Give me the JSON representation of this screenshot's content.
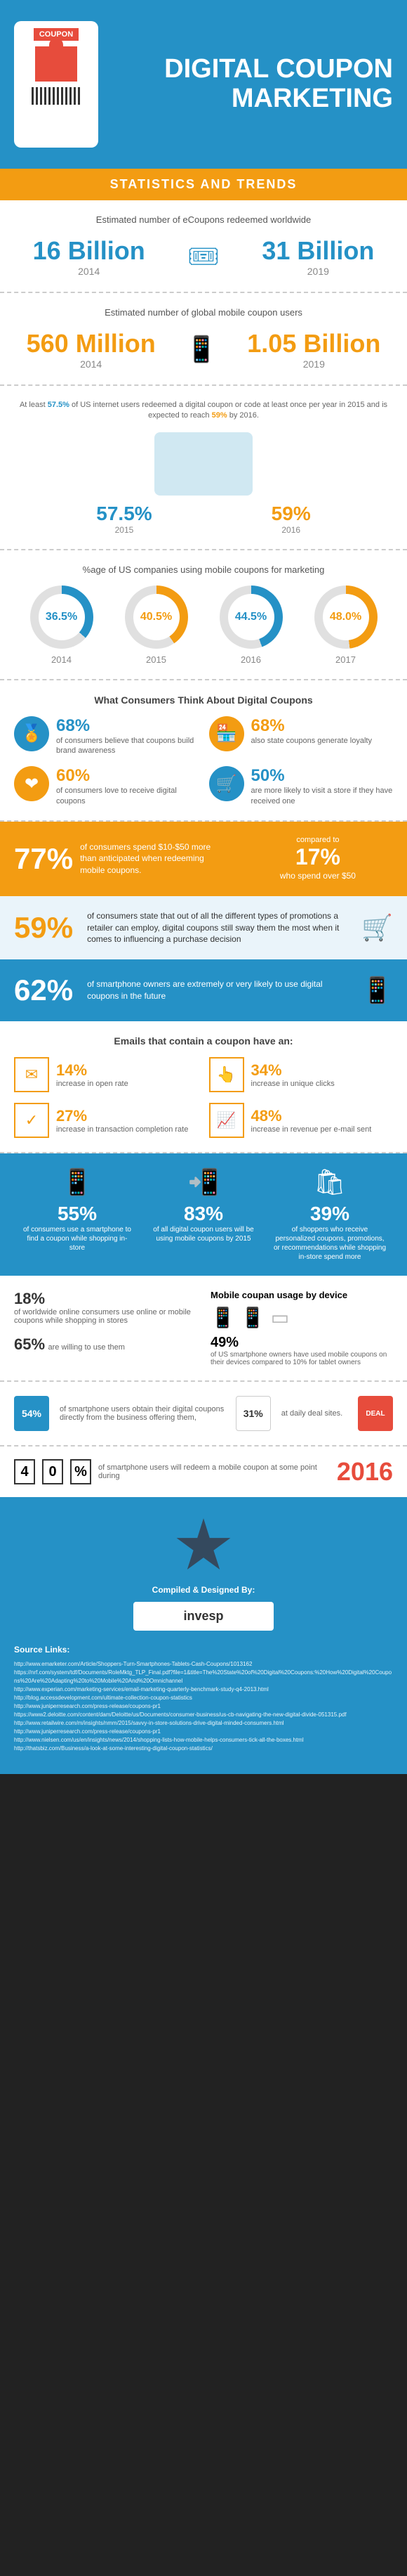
{
  "header": {
    "coupon_label": "COUPON",
    "title": "DIGITAL COUPON MARKETING"
  },
  "subtitle": "STATISTICS AND TRENDS",
  "ecoupons_redeemed": {
    "label": "Estimated number of eCoupons redeemed worldwide",
    "left": {
      "num": "16 Billion",
      "year": "2014"
    },
    "right": {
      "num": "31 Billion",
      "year": "2019"
    }
  },
  "mobile_users": {
    "label": "Estimated number of global mobile coupon users",
    "left": {
      "num": "560 Million",
      "year": "2014"
    },
    "right": {
      "num": "1.05 Billion",
      "year": "2019"
    }
  },
  "redemption": {
    "text_parts": {
      "p1": "At least ",
      "pct1": "57.5%",
      "p2": " of US internet users redeemed a digital coupon or code at least once per year in 2015 and is expected to reach ",
      "pct2": "59%",
      "p3": " by 2016."
    },
    "left": {
      "pct": "57.5%",
      "year": "2015",
      "color": "#2591c6"
    },
    "right": {
      "pct": "59%",
      "year": "2016",
      "color": "#f39c12"
    }
  },
  "us_companies": {
    "label": "%age of US companies using mobile coupons for marketing",
    "items": [
      {
        "pct": "36.5%",
        "year": "2014",
        "deg": 131,
        "color": "#2591c6"
      },
      {
        "pct": "40.5%",
        "year": "2015",
        "deg": 146,
        "color": "#f39c12"
      },
      {
        "pct": "44.5%",
        "year": "2016",
        "deg": 160,
        "color": "#2591c6"
      },
      {
        "pct": "48.0%",
        "year": "2017",
        "deg": 173,
        "color": "#f39c12"
      }
    ]
  },
  "consumer_thoughts": {
    "heading": "What Consumers Think About Digital Coupons",
    "items": [
      {
        "pct": "68%",
        "desc": "of consumers believe that coupons build brand awareness",
        "color": "#2591c6",
        "icon": "🏅"
      },
      {
        "pct": "68%",
        "desc": "also state coupons generate loyalty",
        "color": "#f39c12",
        "icon": "🏪"
      },
      {
        "pct": "60%",
        "desc": "of consumers love to receive digital coupons",
        "color": "#f39c12",
        "icon": "❤"
      },
      {
        "pct": "50%",
        "desc": "are more likely to visit a store if they have received one",
        "color": "#2591c6",
        "icon": "🛒"
      }
    ]
  },
  "orange_band": {
    "left": {
      "pct": "77%",
      "txt": "of consumers spend $10-$50 more than anticipated when redeeming mobile coupons."
    },
    "right": {
      "label": "compared to",
      "pct": "17%",
      "txt": "who spend over $50"
    }
  },
  "lightblue_band_1": {
    "pct": "59%",
    "txt": "of consumers state that out of all the different types of promotions a retailer can employ, digital coupons still sway them the most when it comes to influencing a purchase decision"
  },
  "blue_band_1": {
    "pct": "62%",
    "txt": "of smartphone owners are extremely or very likely to use digital coupons in the future"
  },
  "email_stats": {
    "heading": "Emails that contain a coupon have an:",
    "items": [
      {
        "pct": "14%",
        "desc": "increase in open rate",
        "icon": "✉"
      },
      {
        "pct": "34%",
        "desc": "increase in unique clicks",
        "icon": "👆"
      },
      {
        "pct": "27%",
        "desc": "increase in transaction completion rate",
        "icon": "✓"
      },
      {
        "pct": "48%",
        "desc": "increase in revenue per e-mail sent",
        "icon": "📈"
      }
    ]
  },
  "blue_3col": {
    "items": [
      {
        "pct": "55%",
        "desc": "of consumers use a smartphone to find a coupon while shopping in-store",
        "icon": "📱"
      },
      {
        "pct": "83%",
        "desc": "of all digital coupon users will be using mobile coupons by 2015",
        "icon": "📲"
      },
      {
        "pct": "39%",
        "desc": "of shoppers who receive personalized coupons, promotions, or recommendations while shopping in-store spend more",
        "icon": "🛍"
      }
    ]
  },
  "bottom_stats": {
    "left": [
      {
        "pct": "18%",
        "desc": "of worldwide online consumers use online or mobile coupons while shopping in stores"
      },
      {
        "pct": "65%",
        "desc": "are willing to use them"
      }
    ],
    "right": {
      "title": "Mobile coupan usage by device",
      "pct": "49%",
      "desc": "of US smartphone owners have used mobile coupons on their devices compared to 10% for tablet owners"
    }
  },
  "deal_row": {
    "left": {
      "pct": "54%",
      "desc": "of smartphone users obtain their digital coupons directly from the business offering them,"
    },
    "right": {
      "pct": "31%",
      "desc": "at daily deal sites."
    },
    "badge": "DEAL"
  },
  "year_row": {
    "digits": [
      "4",
      "0",
      "%"
    ],
    "text": "of smartphone users will redeem a mobile coupon at some point during",
    "year": "2016"
  },
  "footer": {
    "compiled": "Compiled & Designed By:",
    "logo": "invesp",
    "sources_title": "Source Links:",
    "sources": [
      "http://www.emarketer.com/Article/Shoppers-Turn-Smartphones-Tablets-Cash-Coupons/1013162",
      "https://nrf.com/system/tdf/Documents/RoleMktg_TLP_Final.pdf?file=1&title=The%20State%20of%20Digital%20Coupons:%20How%20Digital%20Coupons%20Are%20Adapting%20to%20Mobile%20And%20Omnichannel",
      "http://www.experian.com/marketing-services/email-marketing-quarterly-benchmark-study-q4-2013.html",
      "http://blog.accessdevelopment.com/ultimate-collection-coupon-statistics",
      "http://www.juniperresearch.com/press-release/coupons-pr1",
      "https://www2.deloitte.com/content/dam/Deloitte/us/Documents/consumer-business/us-cb-navigating-the-new-digital-divide-051315.pdf",
      "http://www.retailwire.com/m/insights/nmm/2015/savvy-in-store-solutions-drive-digital-minded-consumers.html",
      "http://www.juniperresearch.com/press-release/coupons-pr1",
      "http://www.nielsen.com/us/en/insights/news/2014/shopping-lists-how-mobile-helps-consumers-tick-all-the-boxes.html",
      "http://thatsbiz.com/Business/a-look-at-some-interesting-digital-coupon-statistics/"
    ]
  }
}
